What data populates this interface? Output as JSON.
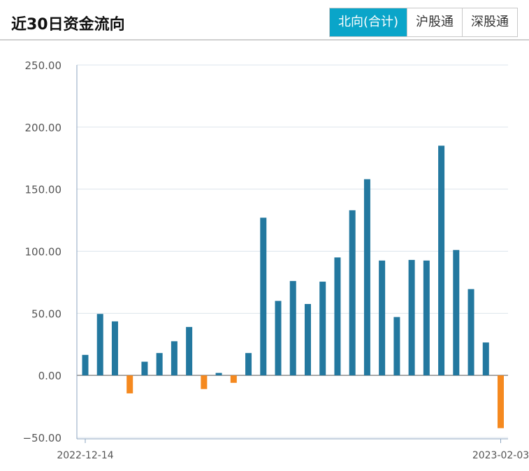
{
  "header": {
    "title": "近30日资金流向",
    "tabs": [
      {
        "label": "北向(合计)",
        "active": true
      },
      {
        "label": "沪股通",
        "active": false
      },
      {
        "label": "深股通",
        "active": false
      }
    ]
  },
  "colors": {
    "positive": "#23789f",
    "negative": "#f5891f",
    "tab_active": "#0aa5c9",
    "grid": "#dde5ec",
    "axis": "#8ea6c0"
  },
  "chart_data": {
    "type": "bar",
    "title": "",
    "xlabel": "",
    "ylabel": "",
    "ylim": [
      -50,
      250
    ],
    "yticks": [
      "250.00",
      "200.00",
      "150.00",
      "100.00",
      "50.00",
      "0.00",
      "−50.00"
    ],
    "x_start_label": "2022-12-14",
    "x_end_label": "2023-02-03",
    "grid": true,
    "legend": "none",
    "values": [
      16.5,
      49.5,
      43.5,
      -14.5,
      11,
      18,
      27.5,
      39,
      -11,
      2,
      -6,
      18,
      127,
      60,
      76,
      57.5,
      75.5,
      95,
      133,
      158,
      92.5,
      47,
      93,
      92.5,
      185,
      101,
      69.5,
      26.5,
      -42.5
    ]
  }
}
